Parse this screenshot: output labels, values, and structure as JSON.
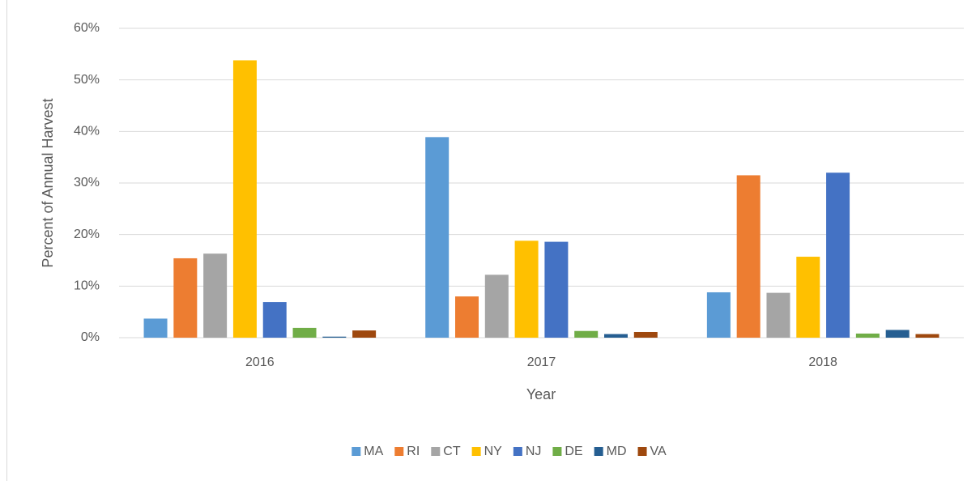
{
  "chart_data": {
    "type": "bar",
    "x_label": "Year",
    "y_label": "Percent of Annual Harvest",
    "categories": [
      "2016",
      "2017",
      "2018"
    ],
    "series": [
      {
        "name": "MA",
        "color": "#5b9bd5",
        "values": [
          3.7,
          38.9,
          8.8
        ]
      },
      {
        "name": "RI",
        "color": "#ed7d31",
        "values": [
          15.4,
          8.0,
          31.5
        ]
      },
      {
        "name": "CT",
        "color": "#a5a5a5",
        "values": [
          16.3,
          12.2,
          8.7
        ]
      },
      {
        "name": "NY",
        "color": "#ffc000",
        "values": [
          53.8,
          18.8,
          15.7
        ]
      },
      {
        "name": "NJ",
        "color": "#4472c4",
        "values": [
          6.9,
          18.6,
          32.0
        ]
      },
      {
        "name": "DE",
        "color": "#70ad47",
        "values": [
          1.9,
          1.3,
          0.8
        ]
      },
      {
        "name": "MD",
        "color": "#255e91",
        "values": [
          0.2,
          0.7,
          1.5
        ]
      },
      {
        "name": "VA",
        "color": "#9e480e",
        "values": [
          1.4,
          1.1,
          0.7
        ]
      }
    ],
    "ylim": [
      0,
      60
    ],
    "yticks": [
      {
        "value": 0,
        "label": "0%"
      },
      {
        "value": 10,
        "label": "10%"
      },
      {
        "value": 20,
        "label": "20%"
      },
      {
        "value": 30,
        "label": "30%"
      },
      {
        "value": 40,
        "label": "40%"
      },
      {
        "value": 50,
        "label": "50%"
      },
      {
        "value": 60,
        "label": "60%"
      }
    ],
    "grid": true,
    "legend": "bottom"
  }
}
